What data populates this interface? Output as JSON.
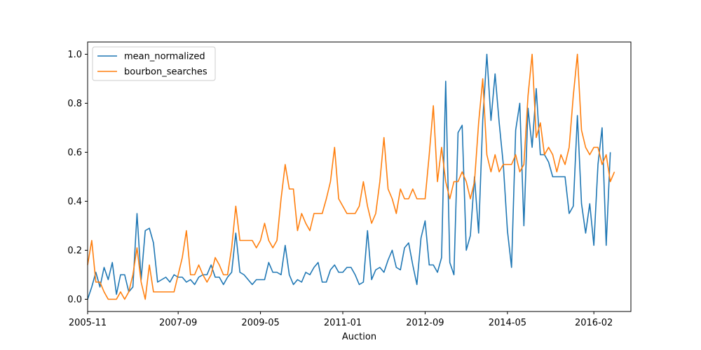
{
  "chart_data": {
    "type": "line",
    "title": "",
    "xlabel": "Auction",
    "ylabel": "",
    "xlim": [
      "2005-11",
      "2016-11"
    ],
    "ylim": [
      -0.05,
      1.05
    ],
    "x_ticks": [
      "2005-11",
      "2007-09",
      "2009-05",
      "2011-01",
      "2012-09",
      "2014-05",
      "2016-02"
    ],
    "y_ticks": [
      "0.0",
      "0.2",
      "0.4",
      "0.6",
      "0.8",
      "1.0"
    ],
    "grid": false,
    "legend_position": "upper-left",
    "series": [
      {
        "name": "mean_normalized",
        "color": "#1f77b4",
        "points": [
          [
            "2005-11",
            0.0
          ],
          [
            "2005-12",
            0.05
          ],
          [
            "2006-01",
            0.11
          ],
          [
            "2006-02",
            0.05
          ],
          [
            "2006-03",
            0.13
          ],
          [
            "2006-04",
            0.08
          ],
          [
            "2006-05",
            0.15
          ],
          [
            "2006-06",
            0.02
          ],
          [
            "2006-07",
            0.1
          ],
          [
            "2006-08",
            0.1
          ],
          [
            "2006-09",
            0.03
          ],
          [
            "2006-10",
            0.05
          ],
          [
            "2006-11",
            0.35
          ],
          [
            "2006-12",
            0.08
          ],
          [
            "2007-01",
            0.28
          ],
          [
            "2007-02",
            0.29
          ],
          [
            "2007-03",
            0.23
          ],
          [
            "2007-04",
            0.07
          ],
          [
            "2007-05",
            0.08
          ],
          [
            "2007-06",
            0.09
          ],
          [
            "2007-07",
            0.07
          ],
          [
            "2007-08",
            0.1
          ],
          [
            "2007-09",
            0.09
          ],
          [
            "2007-10",
            0.09
          ],
          [
            "2007-11",
            0.07
          ],
          [
            "2007-12",
            0.08
          ],
          [
            "2008-01",
            0.06
          ],
          [
            "2008-02",
            0.09
          ],
          [
            "2008-03",
            0.1
          ],
          [
            "2008-04",
            0.1
          ],
          [
            "2008-05",
            0.14
          ],
          [
            "2008-06",
            0.09
          ],
          [
            "2008-07",
            0.09
          ],
          [
            "2008-08",
            0.06
          ],
          [
            "2008-09",
            0.09
          ],
          [
            "2008-10",
            0.11
          ],
          [
            "2008-11",
            0.27
          ],
          [
            "2008-12",
            0.11
          ],
          [
            "2009-01",
            0.1
          ],
          [
            "2009-02",
            0.08
          ],
          [
            "2009-03",
            0.06
          ],
          [
            "2009-04",
            0.08
          ],
          [
            "2009-05",
            0.08
          ],
          [
            "2009-06",
            0.08
          ],
          [
            "2009-07",
            0.15
          ],
          [
            "2009-08",
            0.11
          ],
          [
            "2009-09",
            0.11
          ],
          [
            "2009-10",
            0.1
          ],
          [
            "2009-11",
            0.22
          ],
          [
            "2009-12",
            0.1
          ],
          [
            "2010-01",
            0.06
          ],
          [
            "2010-02",
            0.08
          ],
          [
            "2010-03",
            0.07
          ],
          [
            "2010-04",
            0.11
          ],
          [
            "2010-05",
            0.1
          ],
          [
            "2010-06",
            0.13
          ],
          [
            "2010-07",
            0.15
          ],
          [
            "2010-08",
            0.07
          ],
          [
            "2010-09",
            0.07
          ],
          [
            "2010-10",
            0.12
          ],
          [
            "2010-11",
            0.14
          ],
          [
            "2010-12",
            0.11
          ],
          [
            "2011-01",
            0.11
          ],
          [
            "2011-02",
            0.13
          ],
          [
            "2011-03",
            0.13
          ],
          [
            "2011-04",
            0.1
          ],
          [
            "2011-05",
            0.06
          ],
          [
            "2011-06",
            0.07
          ],
          [
            "2011-07",
            0.28
          ],
          [
            "2011-08",
            0.08
          ],
          [
            "2011-09",
            0.12
          ],
          [
            "2011-10",
            0.13
          ],
          [
            "2011-11",
            0.11
          ],
          [
            "2011-12",
            0.16
          ],
          [
            "2012-01",
            0.2
          ],
          [
            "2012-02",
            0.13
          ],
          [
            "2012-03",
            0.12
          ],
          [
            "2012-04",
            0.21
          ],
          [
            "2012-05",
            0.23
          ],
          [
            "2012-06",
            0.14
          ],
          [
            "2012-07",
            0.06
          ],
          [
            "2012-08",
            0.25
          ],
          [
            "2012-09",
            0.32
          ],
          [
            "2012-10",
            0.14
          ],
          [
            "2012-11",
            0.14
          ],
          [
            "2012-12",
            0.11
          ],
          [
            "2013-01",
            0.17
          ],
          [
            "2013-02",
            0.89
          ],
          [
            "2013-03",
            0.15
          ],
          [
            "2013-04",
            0.1
          ],
          [
            "2013-05",
            0.68
          ],
          [
            "2013-06",
            0.71
          ],
          [
            "2013-07",
            0.2
          ],
          [
            "2013-08",
            0.26
          ],
          [
            "2013-09",
            0.5
          ],
          [
            "2013-10",
            0.27
          ],
          [
            "2013-11",
            0.73
          ],
          [
            "2013-12",
            1.0
          ],
          [
            "2014-01",
            0.73
          ],
          [
            "2014-02",
            0.92
          ],
          [
            "2014-03",
            0.72
          ],
          [
            "2014-04",
            0.55
          ],
          [
            "2014-05",
            0.28
          ],
          [
            "2014-06",
            0.13
          ],
          [
            "2014-07",
            0.69
          ],
          [
            "2014-08",
            0.8
          ],
          [
            "2014-09",
            0.3
          ],
          [
            "2014-10",
            0.78
          ],
          [
            "2014-11",
            0.62
          ],
          [
            "2014-12",
            0.86
          ],
          [
            "2015-01",
            0.59
          ],
          [
            "2015-02",
            0.59
          ],
          [
            "2015-03",
            0.56
          ],
          [
            "2015-04",
            0.5
          ],
          [
            "2015-05",
            0.5
          ],
          [
            "2015-06",
            0.5
          ],
          [
            "2015-07",
            0.5
          ],
          [
            "2015-08",
            0.35
          ],
          [
            "2015-09",
            0.38
          ],
          [
            "2015-10",
            0.75
          ],
          [
            "2015-11",
            0.39
          ],
          [
            "2015-12",
            0.27
          ],
          [
            "2016-01",
            0.39
          ],
          [
            "2016-02",
            0.22
          ],
          [
            "2016-03",
            0.55
          ],
          [
            "2016-04",
            0.7
          ],
          [
            "2016-05",
            0.22
          ],
          [
            "2016-06",
            0.6
          ]
        ]
      },
      {
        "name": "bourbon_searches",
        "color": "#ff7f0e",
        "points": [
          [
            "2005-11",
            0.14
          ],
          [
            "2005-12",
            0.24
          ],
          [
            "2006-01",
            0.07
          ],
          [
            "2006-02",
            0.07
          ],
          [
            "2006-03",
            0.03
          ],
          [
            "2006-04",
            0.0
          ],
          [
            "2006-05",
            0.0
          ],
          [
            "2006-06",
            0.0
          ],
          [
            "2006-07",
            0.03
          ],
          [
            "2006-08",
            0.0
          ],
          [
            "2006-09",
            0.03
          ],
          [
            "2006-10",
            0.1
          ],
          [
            "2006-11",
            0.21
          ],
          [
            "2006-12",
            0.07
          ],
          [
            "2007-01",
            0.0
          ],
          [
            "2007-02",
            0.14
          ],
          [
            "2007-03",
            0.03
          ],
          [
            "2007-04",
            0.03
          ],
          [
            "2007-05",
            0.03
          ],
          [
            "2007-06",
            0.03
          ],
          [
            "2007-07",
            0.03
          ],
          [
            "2007-08",
            0.03
          ],
          [
            "2007-09",
            0.1
          ],
          [
            "2007-10",
            0.17
          ],
          [
            "2007-11",
            0.28
          ],
          [
            "2007-12",
            0.1
          ],
          [
            "2008-01",
            0.1
          ],
          [
            "2008-02",
            0.14
          ],
          [
            "2008-03",
            0.1
          ],
          [
            "2008-04",
            0.07
          ],
          [
            "2008-05",
            0.1
          ],
          [
            "2008-06",
            0.17
          ],
          [
            "2008-07",
            0.14
          ],
          [
            "2008-08",
            0.1
          ],
          [
            "2008-09",
            0.1
          ],
          [
            "2008-10",
            0.21
          ],
          [
            "2008-11",
            0.38
          ],
          [
            "2008-12",
            0.24
          ],
          [
            "2009-01",
            0.24
          ],
          [
            "2009-02",
            0.24
          ],
          [
            "2009-03",
            0.24
          ],
          [
            "2009-04",
            0.21
          ],
          [
            "2009-05",
            0.24
          ],
          [
            "2009-06",
            0.31
          ],
          [
            "2009-07",
            0.24
          ],
          [
            "2009-08",
            0.21
          ],
          [
            "2009-09",
            0.24
          ],
          [
            "2009-10",
            0.41
          ],
          [
            "2009-11",
            0.55
          ],
          [
            "2009-12",
            0.45
          ],
          [
            "2010-01",
            0.45
          ],
          [
            "2010-02",
            0.28
          ],
          [
            "2010-03",
            0.35
          ],
          [
            "2010-04",
            0.31
          ],
          [
            "2010-05",
            0.28
          ],
          [
            "2010-06",
            0.35
          ],
          [
            "2010-07",
            0.35
          ],
          [
            "2010-08",
            0.35
          ],
          [
            "2010-09",
            0.41
          ],
          [
            "2010-10",
            0.48
          ],
          [
            "2010-11",
            0.62
          ],
          [
            "2010-12",
            0.41
          ],
          [
            "2011-01",
            0.38
          ],
          [
            "2011-02",
            0.35
          ],
          [
            "2011-03",
            0.35
          ],
          [
            "2011-04",
            0.35
          ],
          [
            "2011-05",
            0.38
          ],
          [
            "2011-06",
            0.48
          ],
          [
            "2011-07",
            0.38
          ],
          [
            "2011-08",
            0.31
          ],
          [
            "2011-09",
            0.35
          ],
          [
            "2011-10",
            0.48
          ],
          [
            "2011-11",
            0.66
          ],
          [
            "2011-12",
            0.45
          ],
          [
            "2012-01",
            0.41
          ],
          [
            "2012-02",
            0.35
          ],
          [
            "2012-03",
            0.45
          ],
          [
            "2012-04",
            0.41
          ],
          [
            "2012-05",
            0.41
          ],
          [
            "2012-06",
            0.45
          ],
          [
            "2012-07",
            0.41
          ],
          [
            "2012-08",
            0.41
          ],
          [
            "2012-09",
            0.41
          ],
          [
            "2012-10",
            0.59
          ],
          [
            "2012-11",
            0.79
          ],
          [
            "2012-12",
            0.48
          ],
          [
            "2013-01",
            0.62
          ],
          [
            "2013-02",
            0.48
          ],
          [
            "2013-03",
            0.41
          ],
          [
            "2013-04",
            0.48
          ],
          [
            "2013-05",
            0.48
          ],
          [
            "2013-06",
            0.52
          ],
          [
            "2013-07",
            0.48
          ],
          [
            "2013-08",
            0.41
          ],
          [
            "2013-09",
            0.48
          ],
          [
            "2013-10",
            0.72
          ],
          [
            "2013-11",
            0.9
          ],
          [
            "2013-12",
            0.59
          ],
          [
            "2014-01",
            0.52
          ],
          [
            "2014-02",
            0.59
          ],
          [
            "2014-03",
            0.52
          ],
          [
            "2014-04",
            0.55
          ],
          [
            "2014-05",
            0.55
          ],
          [
            "2014-06",
            0.55
          ],
          [
            "2014-07",
            0.59
          ],
          [
            "2014-08",
            0.52
          ],
          [
            "2014-09",
            0.55
          ],
          [
            "2014-10",
            0.83
          ],
          [
            "2014-11",
            1.0
          ],
          [
            "2014-12",
            0.66
          ],
          [
            "2015-01",
            0.72
          ],
          [
            "2015-02",
            0.59
          ],
          [
            "2015-03",
            0.62
          ],
          [
            "2015-04",
            0.59
          ],
          [
            "2015-05",
            0.52
          ],
          [
            "2015-06",
            0.59
          ],
          [
            "2015-07",
            0.55
          ],
          [
            "2015-08",
            0.62
          ],
          [
            "2015-09",
            0.83
          ],
          [
            "2015-10",
            1.0
          ],
          [
            "2015-11",
            0.69
          ],
          [
            "2015-12",
            0.62
          ],
          [
            "2016-01",
            0.59
          ],
          [
            "2016-02",
            0.62
          ],
          [
            "2016-03",
            0.62
          ],
          [
            "2016-04",
            0.55
          ],
          [
            "2016-05",
            0.59
          ],
          [
            "2016-06",
            0.48
          ],
          [
            "2016-07",
            0.52
          ]
        ]
      }
    ]
  }
}
